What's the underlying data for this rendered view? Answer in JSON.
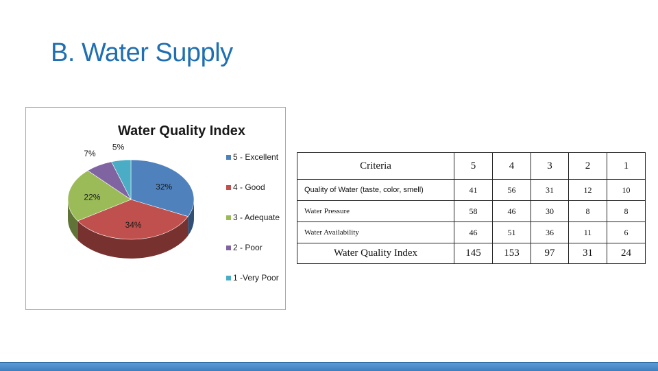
{
  "slide": {
    "title": "B. Water Supply"
  },
  "chart_data": [
    {
      "type": "pie",
      "title": "Water Quality Index",
      "categories": [
        "5 - Excellent",
        "4 - Good",
        "3 - Adequate",
        "2 - Poor",
        "1 -Very Poor"
      ],
      "values": [
        32,
        34,
        22,
        7,
        5
      ],
      "labels": [
        "32%",
        "34%",
        "22%",
        "7%",
        "5%"
      ],
      "colors": [
        "#4f81bd",
        "#c0504d",
        "#9bbb59",
        "#8064a2",
        "#4bacc6"
      ],
      "legend": "right",
      "three_d": true
    },
    {
      "type": "table",
      "columns": [
        "Criteria",
        "5",
        "4",
        "3",
        "2",
        "1"
      ],
      "rows": [
        [
          "Quality of Water (taste, color, smell)",
          "41",
          "56",
          "31",
          "12",
          "10"
        ],
        [
          "Water Pressure",
          "58",
          "46",
          "30",
          "8",
          "8"
        ],
        [
          "Water Availability",
          "46",
          "51",
          "36",
          "11",
          "6"
        ]
      ],
      "totals": [
        "Water Quality Index",
        "145",
        "153",
        "97",
        "31",
        "24"
      ]
    }
  ]
}
